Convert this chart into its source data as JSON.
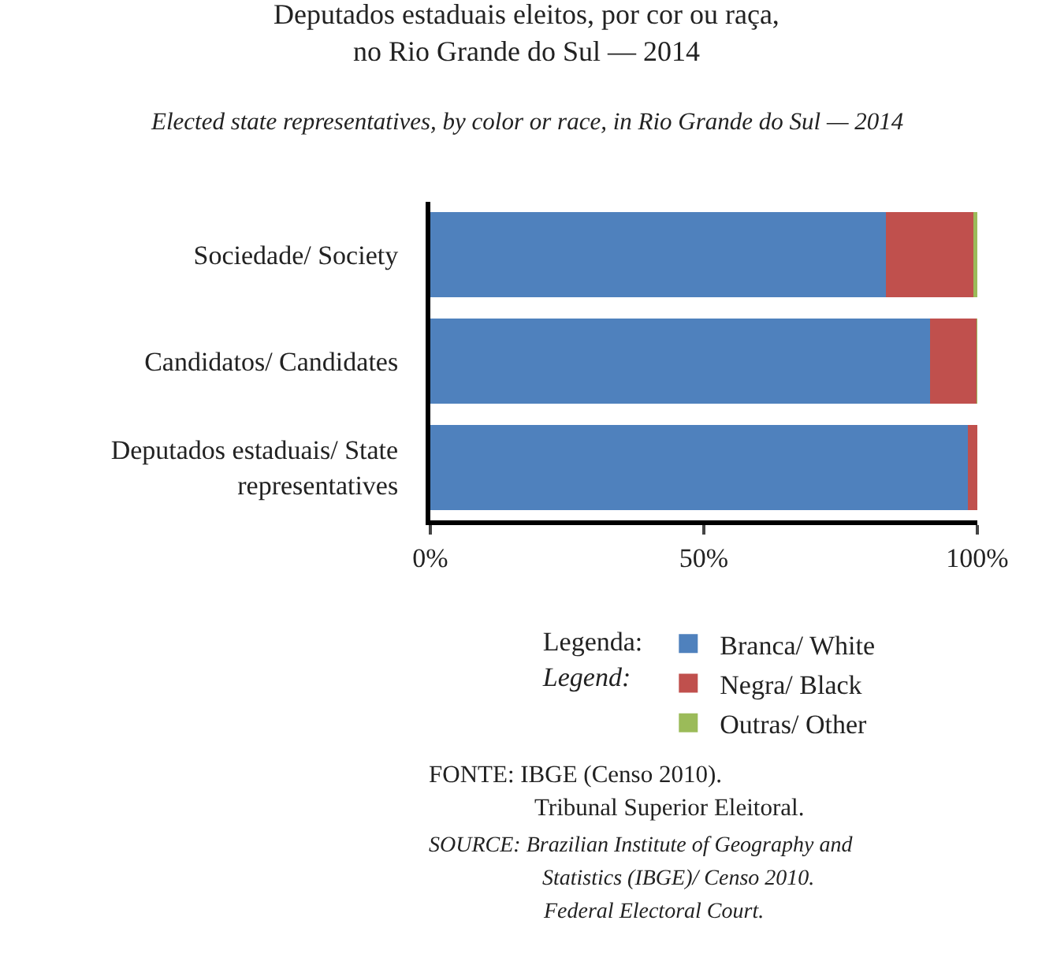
{
  "chart_data": {
    "type": "bar",
    "orientation": "horizontal",
    "stacked": true,
    "title": "Deputados estaduais eleitos, por cor ou raça,\nno Rio Grande do Sul — 2014",
    "subtitle": "Elected state representatives, by color or race, in Rio Grande do Sul — 2014",
    "categories": [
      "Sociedade/ Society",
      "Candidatos/ Candidates",
      "Deputados estaduais/ State representatives"
    ],
    "series": [
      {
        "name": "Branca/ White",
        "color": "#4f81bd",
        "values": [
          83.3,
          91.4,
          98.2
        ]
      },
      {
        "name": "Negra/ Black",
        "color": "#c0504d",
        "values": [
          16.0,
          8.5,
          1.8
        ]
      },
      {
        "name": "Outras/ Other",
        "color": "#9bbb59",
        "values": [
          0.7,
          0.1,
          0
        ]
      }
    ],
    "xlim": [
      0,
      100
    ],
    "xticks": [
      {
        "value": 0,
        "label": "0%"
      },
      {
        "value": 50,
        "label": "50%"
      },
      {
        "value": 100,
        "label": "100%"
      }
    ],
    "grid": false,
    "legend": "bottom",
    "legend_title": "Legenda:\nLegend:",
    "annotations": [
      "FONTE: IBGE (Censo 2010).\nTribunal Superior Eleitoral.",
      "SOURCE: Brazilian Institute of Geography and\nStatistics (IBGE)/ Censo 2010.\nFederal Electoral Court."
    ]
  }
}
